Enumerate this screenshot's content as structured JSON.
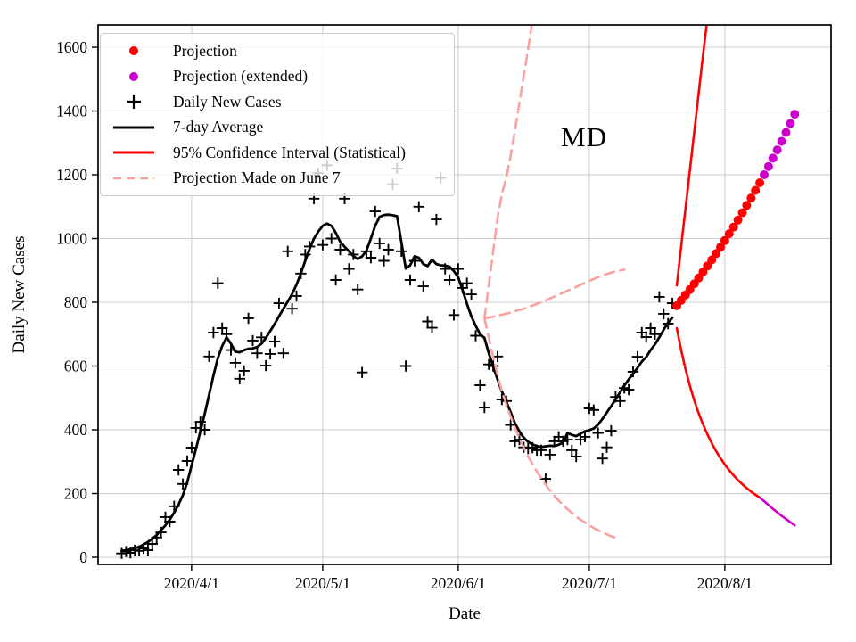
{
  "figure": {
    "annotation": "MD"
  },
  "axes": {
    "xlabel": "Date",
    "ylabel": "Daily New Cases",
    "x_ticks": [
      "2020/4/1",
      "2020/5/1",
      "2020/6/1",
      "2020/7/1",
      "2020/8/1"
    ],
    "y_ticks": [
      0,
      200,
      400,
      600,
      800,
      1000,
      1200,
      1400,
      1600
    ],
    "grid": true
  },
  "colors": {
    "projection": "#ff0000",
    "projection_extended": "#cc00cc",
    "daily_cases": "#000000",
    "average": "#000000",
    "confidence_interval": "#ff0000",
    "june7_projection": "#faa0a0",
    "gridline": "#cccccc",
    "spine": "#000000"
  },
  "legend": {
    "entries": [
      {
        "marker": "dot",
        "color": "#ff0000",
        "label": "Projection"
      },
      {
        "marker": "dot",
        "color": "#cc00cc",
        "label": "Projection (extended)"
      },
      {
        "marker": "plus",
        "color": "#000000",
        "label": "Daily New Cases"
      },
      {
        "marker": "line",
        "color": "#000000",
        "label": "7-day Average"
      },
      {
        "marker": "line",
        "color": "#ff0000",
        "label": "95% Confidence Interval (Statistical)"
      },
      {
        "marker": "dashed",
        "color": "#faa0a0",
        "label": "Projection Made on June 7"
      }
    ]
  },
  "chart_data": {
    "type": "line",
    "title": "MD",
    "xlabel": "Date",
    "ylabel": "Daily New Cases",
    "x_tick_labels": [
      "2020/4/1",
      "2020/5/1",
      "2020/6/1",
      "2020/7/1",
      "2020/8/1"
    ],
    "ylim": [
      -22.4,
      1670
    ],
    "xlim_days_from_mar1": [
      9.6,
      177.3
    ],
    "legend_position": "upper left",
    "grid": true,
    "series": [
      {
        "name": "Daily New Cases",
        "style": "scatter-plus",
        "color": "#000000",
        "lw": 1.9,
        "start_date": "2020/3/16",
        "values": [
          12,
          18,
          14,
          22,
          20,
          28,
          22,
          42,
          62,
          78,
          126,
          112,
          160,
          274,
          230,
          302,
          344,
          406,
          425,
          400,
          630,
          705,
          860,
          719,
          700,
          650,
          610,
          560,
          585,
          750,
          680,
          640,
          690,
          601,
          638,
          677,
          797,
          640,
          960,
          780,
          820,
          890,
          950,
          975,
          1125,
          1205,
          980,
          1230,
          1000,
          870,
          965,
          1125,
          905,
          950,
          840,
          580,
          960,
          940,
          1085,
          985,
          930,
          965,
          1170,
          1220,
          960,
          600,
          870,
          930,
          1100,
          850,
          740,
          720,
          1060,
          1190,
          905,
          870,
          760,
          905,
          845,
          860,
          825,
          695,
          540,
          470,
          605,
          600,
          630,
          495,
          490,
          415,
          364,
          369,
          345,
          341,
          344,
          336,
          336,
          246,
          322,
          364,
          378,
          364,
          369,
          336,
          316,
          369,
          378,
          467,
          462,
          390,
          310,
          345,
          397,
          503,
          490,
          531,
          526,
          582,
          629,
          705,
          691,
          719,
          700,
          817,
          764,
          733,
          797
        ]
      },
      {
        "name": "7-day Average",
        "style": "line",
        "color": "#000000",
        "lw": 2.8,
        "start_date": "2020/3/16",
        "values": [
          20,
          22,
          25,
          28,
          33,
          40,
          48,
          58,
          70,
          85,
          100,
          118,
          140,
          165,
          195,
          235,
          288,
          340,
          395,
          450,
          510,
          570,
          625,
          663,
          690,
          670,
          645,
          643,
          650,
          654,
          655,
          660,
          670,
          688,
          710,
          732,
          756,
          780,
          802,
          826,
          855,
          890,
          930,
          968,
          1000,
          1022,
          1040,
          1047,
          1040,
          1018,
          990,
          974,
          960,
          945,
          936,
          944,
          962,
          1000,
          1040,
          1068,
          1074,
          1075,
          1073,
          1070,
          988,
          906,
          916,
          944,
          940,
          920,
          914,
          934,
          920,
          916,
          915,
          912,
          898,
          878,
          838,
          795,
          756,
          726,
          700,
          688,
          640,
          598,
          558,
          520,
          488,
          455,
          420,
          395,
          375,
          362,
          354,
          349,
          346,
          348,
          350,
          349,
          353,
          360,
          390,
          384,
          380,
          388,
          395,
          399,
          404,
          416,
          434,
          454,
          474,
          496,
          517,
          539,
          558,
          576,
          594,
          614,
          628,
          650,
          668,
          690,
          714,
          736,
          752
        ]
      },
      {
        "name": "Projection Made on June 7 (upper)",
        "style": "dashed",
        "color": "#faa0a0",
        "lw": 2.6,
        "start_date": "2020/6/7",
        "values": [
          750,
          855,
          960,
          1065,
          1140,
          1190,
          1260,
          1340,
          1425,
          1510,
          1595,
          1685
        ]
      },
      {
        "name": "Projection Made on June 7 (central)",
        "style": "dashed",
        "color": "#faa0a0",
        "lw": 2.6,
        "start_date": "2020/6/7",
        "values": [
          750,
          752,
          755,
          758,
          761,
          764,
          768,
          772,
          776,
          780,
          785,
          790,
          795,
          800,
          806,
          812,
          818,
          824,
          830,
          836,
          842,
          848,
          855,
          861,
          867,
          873,
          879,
          884,
          889,
          893,
          897,
          900,
          902
        ]
      },
      {
        "name": "Projection Made on June 7 (lower)",
        "style": "dashed",
        "color": "#faa0a0",
        "lw": 2.6,
        "start_date": "2020/6/7",
        "values": [
          750,
          688,
          628,
          572,
          521,
          480,
          441,
          406,
          374,
          344,
          317,
          292,
          269,
          248,
          228,
          210,
          193,
          178,
          164,
          151,
          139,
          128,
          118,
          109,
          100,
          92,
          85,
          78,
          72,
          66,
          61,
          58
        ]
      },
      {
        "name": "95% Confidence Interval upper",
        "style": "line",
        "color": "#ff0000",
        "lw": 2.6,
        "start_date": "2020/7/21",
        "values": [
          853,
          975,
          1095,
          1215,
          1335,
          1455,
          1575,
          1690
        ]
      },
      {
        "name": "95% Confidence Interval lower",
        "style": "line",
        "color": "#ff0000",
        "lw": 2.6,
        "start_date": "2020/7/21",
        "values": [
          719,
          650,
          590,
          538,
          492,
          452,
          417,
          386,
          358,
          333,
          311,
          291,
          273,
          257,
          242,
          229,
          217,
          206,
          196,
          187
        ]
      },
      {
        "name": "95% Confidence Interval lower (extended)",
        "style": "line",
        "color": "#cc00cc",
        "lw": 2.6,
        "start_date": "2020/8/9",
        "values": [
          187,
          176,
          164,
          152,
          141,
          130,
          120,
          110,
          100
        ]
      },
      {
        "name": "Projection",
        "style": "dots",
        "color": "#ff0000",
        "lw": 0,
        "start_date": "2020/7/21",
        "values": [
          789,
          806,
          823,
          840,
          858,
          876,
          895,
          914,
          933,
          953,
          973,
          994,
          1015,
          1036,
          1058,
          1081,
          1104,
          1127,
          1151,
          1175
        ]
      },
      {
        "name": "Projection (extended)",
        "style": "dots",
        "color": "#cc00cc",
        "lw": 0,
        "start_date": "2020/8/10",
        "values": [
          1200,
          1226,
          1252,
          1278,
          1305,
          1333,
          1361,
          1390
        ]
      }
    ]
  }
}
